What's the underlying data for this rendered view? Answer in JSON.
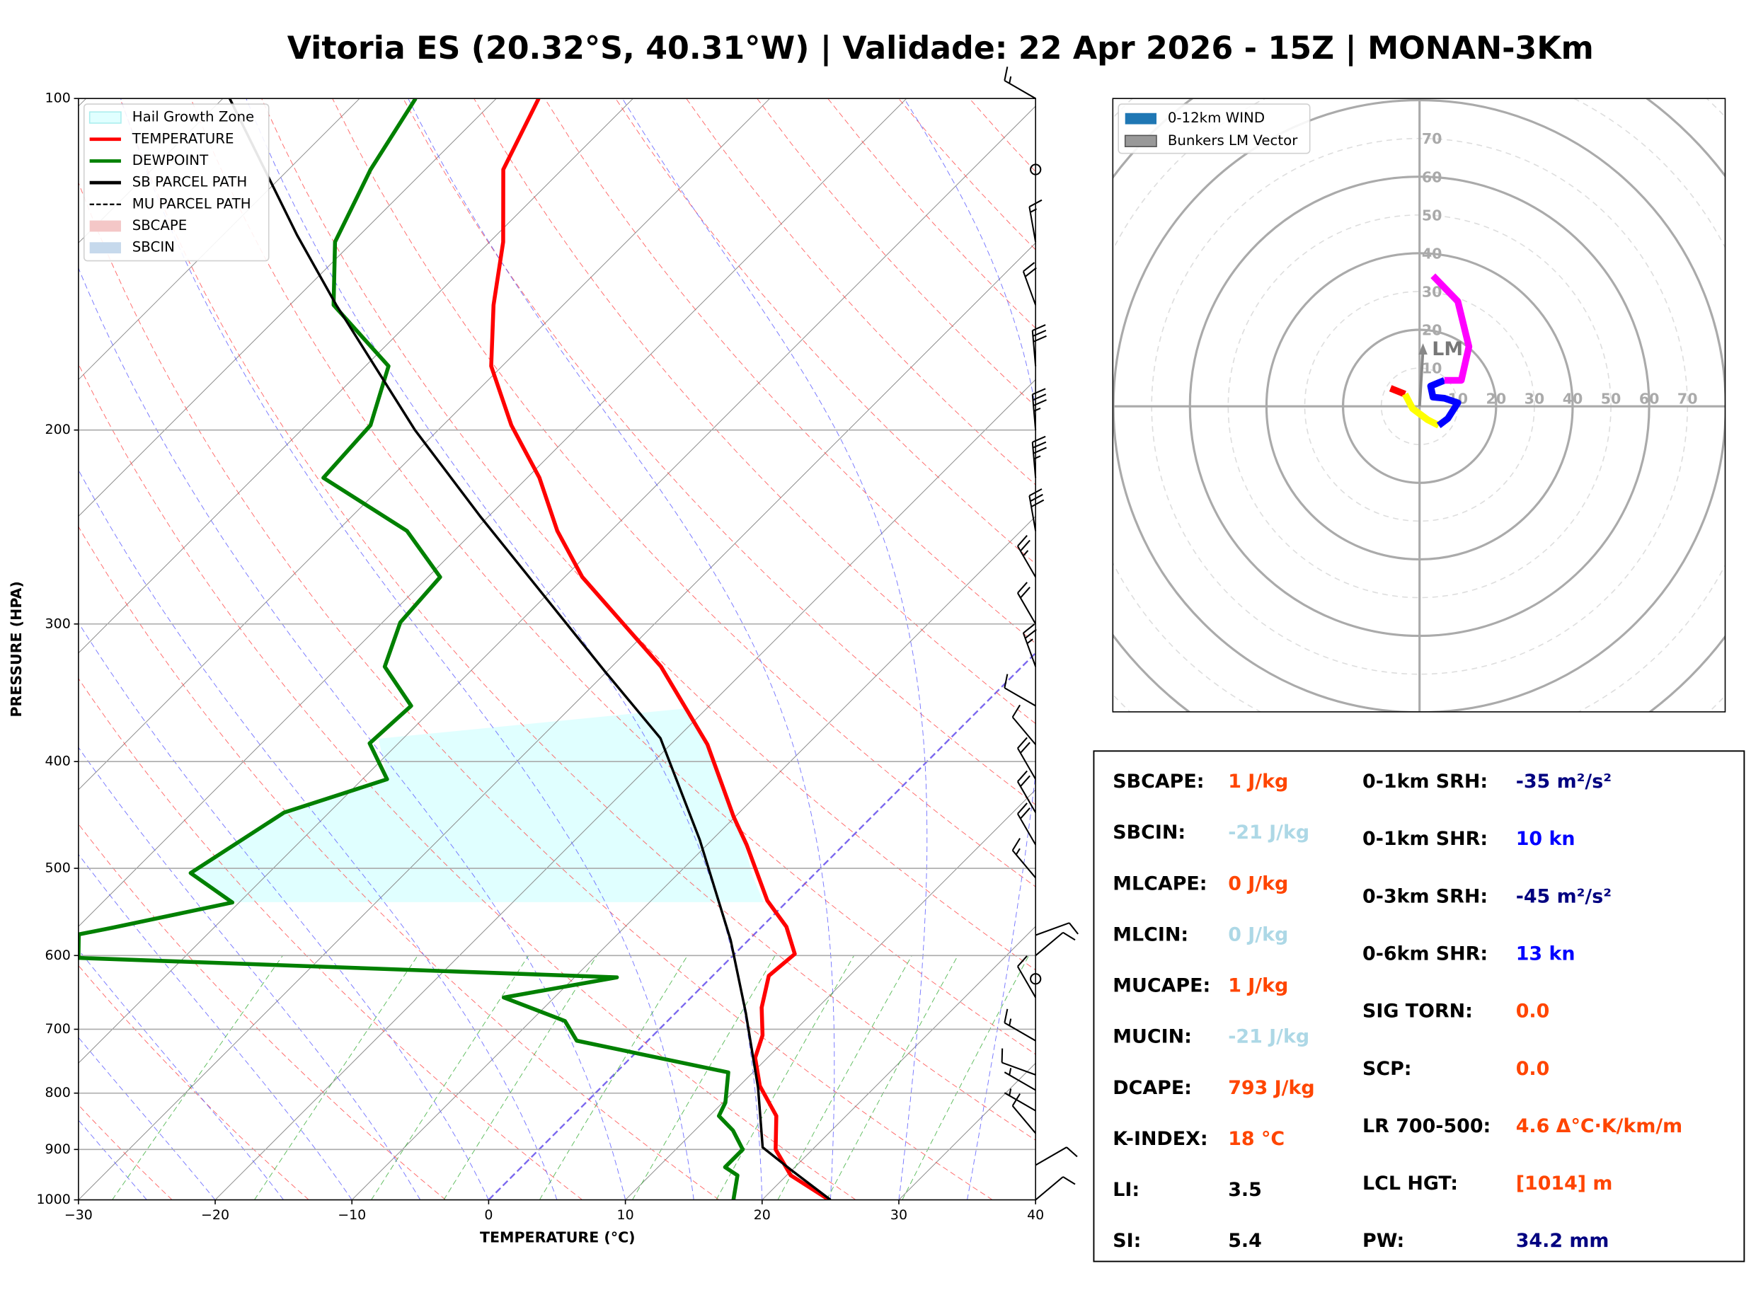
{
  "title": "Vitoria ES (20.32°S, 40.31°W) | Validade: 22 Apr 2026 - 15Z | MONAN-3Km",
  "chart_data": [
    {
      "type": "skewt",
      "x_label": "TEMPERATURE (°C)",
      "y_label": "PRESSURE (HPA)",
      "log_y": true,
      "grid": true,
      "legend_position": "upper left",
      "xlim": [
        -30,
        40
      ],
      "ylim": [
        1000,
        100
      ],
      "xticks": [
        {
          "value": -30,
          "label": "−30"
        },
        {
          "value": -20,
          "label": "−20"
        },
        {
          "value": -10,
          "label": "−10"
        },
        0,
        10,
        20,
        30,
        40
      ],
      "yticks": [
        100,
        200,
        300,
        400,
        500,
        600,
        700,
        800,
        900,
        1000
      ],
      "legend": [
        {
          "name": "Hail Growth Zone",
          "color": "#e0ffff",
          "style": "patch"
        },
        {
          "name": "TEMPERATURE",
          "color": "#ff0000",
          "style": "line"
        },
        {
          "name": "DEWPOINT",
          "color": "#008000",
          "style": "line"
        },
        {
          "name": "SB PARCEL PATH",
          "color": "#000000",
          "style": "line"
        },
        {
          "name": "MU PARCEL PATH",
          "color": "#000000",
          "style": "dashed"
        },
        {
          "name": "SBCAPE",
          "color": "#f4c7c7",
          "style": "patch"
        },
        {
          "name": "SBCIN",
          "color": "#c6d9ec",
          "style": "patch"
        }
      ],
      "series": [
        {
          "color": "#ff0000",
          "pressure": [
            1000,
            950,
            900,
            839,
            788,
            743,
            709,
            669,
            626,
            598,
            565,
            535,
            476,
            449,
            386,
            328,
            272,
            247,
            221,
            198,
            175,
            154,
            135,
            116,
            100
          ],
          "values": [
            24.9,
            20.3,
            17.3,
            14.9,
            11.5,
            9.1,
            8.0,
            5.9,
            4.1,
            4.4,
            1.8,
            -1.5,
            -7.1,
            -10.1,
            -17.3,
            -26.4,
            -38.7,
            -43.9,
            -49.1,
            -55.0,
            -60.8,
            -65.1,
            -69.0,
            -74.3,
            -76.9
          ]
        },
        {
          "color": "#008000",
          "pressure": [
            1000,
            950,
            934,
            900,
            865,
            839,
            816,
            766,
            717,
            688,
            655,
            628,
            603,
            574,
            566,
            537,
            505,
            445,
            415,
            385,
            356,
            328,
            299,
            272,
            247,
            221,
            198,
            175,
            154,
            135,
            116,
            100
          ],
          "values": [
            17.9,
            16.4,
            14.9,
            14.9,
            12.8,
            10.7,
            10.2,
            8.2,
            -5.2,
            -7.5,
            -13.7,
            -6.9,
            -47.7,
            -49.4,
            -47.4,
            -40.5,
            -45.7,
            -43.3,
            -38.2,
            -42.1,
            -41.8,
            -46.6,
            -48.7,
            -49.1,
            -54.9,
            -64.9,
            -65.3,
            -68.3,
            -76.8,
            -81.3,
            -84.0,
            -85.9
          ]
        },
        {
          "color": "#000000",
          "pressure": [
            1000,
            939,
            896,
            791,
            676,
            581,
            471,
            381,
            331,
            240,
            200,
            154,
            133,
            100
          ],
          "values": [
            25.0,
            19.9,
            16.2,
            11.5,
            5.1,
            -1.3,
            -10.9,
            -21.2,
            -30.2,
            -50.5,
            -61.7,
            -76.6,
            -84.6,
            -99.5
          ]
        }
      ],
      "wind": {
        "pressure": [
          100,
          116,
          135,
          154,
          175,
          200,
          221,
          247,
          272,
          300,
          328,
          356,
          386,
          415,
          445,
          476,
          510,
          575,
          600,
          630,
          655,
          717,
          770,
          795,
          830,
          870,
          930,
          1000
        ],
        "direction": [
          300,
          0,
          350,
          340,
          355,
          355,
          355,
          350,
          330,
          330,
          340,
          300,
          320,
          330,
          330,
          330,
          320,
          70,
          50,
          0,
          330,
          300,
          290,
          300,
          300,
          320,
          60,
          50
        ],
        "speed": [
          15,
          0,
          15,
          20,
          30,
          35,
          35,
          30,
          25,
          20,
          25,
          10,
          10,
          20,
          20,
          20,
          15,
          10,
          10,
          0,
          10,
          15,
          10,
          5,
          5,
          10,
          10,
          10
        ]
      }
    },
    {
      "type": "hodograph",
      "xlim": [
        -80,
        80
      ],
      "ylim": [
        -80,
        80
      ],
      "rings": [
        10,
        20,
        30,
        40,
        50,
        60,
        70
      ],
      "legend": [
        {
          "name": "0-12km WIND",
          "color": "#1f77b4"
        },
        {
          "name": "Bunkers LM Vector",
          "color": "#999999"
        }
      ],
      "segments": [
        {
          "color": "#ff0000",
          "u": [
            -7.6,
            -3.8
          ],
          "v": [
            4.7,
            3.2
          ]
        },
        {
          "color": "#ffff00",
          "u": [
            -3.8,
            -1.8,
            2.1,
            5.0
          ],
          "v": [
            3.2,
            -0.6,
            -3.5,
            -5.0
          ]
        },
        {
          "color": "#0000ff",
          "u": [
            5.0,
            7.4,
            10.0,
            6.5,
            3.5,
            2.9,
            6.5
          ],
          "v": [
            -5.0,
            -3.2,
            0.9,
            2.1,
            2.4,
            5.3,
            6.8
          ]
        },
        {
          "color": "#ff00ff",
          "u": [
            6.5,
            10.9,
            12.9,
            10.0,
            3.5
          ],
          "v": [
            6.8,
            6.8,
            15.6,
            27.4,
            34.1
          ]
        }
      ],
      "lm_vector": {
        "label": "LM",
        "u": 0.9,
        "v": 14.7
      }
    }
  ],
  "indices": {
    "left": [
      {
        "label": "SBCAPE:",
        "value": "1 J/kg",
        "color": "#ff4500"
      },
      {
        "label": "SBCIN:",
        "value": "-21 J/kg",
        "color": "#add8e6"
      },
      {
        "label": "MLCAPE:",
        "value": "0 J/kg",
        "color": "#ff4500"
      },
      {
        "label": "MLCIN:",
        "value": "0 J/kg",
        "color": "#add8e6"
      },
      {
        "label": "MUCAPE:",
        "value": "1 J/kg",
        "color": "#ff4500"
      },
      {
        "label": "MUCIN:",
        "value": "-21 J/kg",
        "color": "#add8e6"
      },
      {
        "label": "DCAPE:",
        "value": "793 J/kg",
        "color": "#ff4500"
      },
      {
        "label": "K-INDEX:",
        "value": "18 °C",
        "color": "#ff4500"
      },
      {
        "label": "LI:",
        "value": "3.5",
        "color": "#000000"
      },
      {
        "label": "SI:",
        "value": "5.4",
        "color": "#000000"
      }
    ],
    "right": [
      {
        "label": "0-1km SRH:",
        "value": "-35 m²/s²",
        "color": "#000080"
      },
      {
        "label": "0-1km SHR:",
        "value": "10 kn",
        "color": "#0000ff"
      },
      {
        "label": "0-3km SRH:",
        "value": "-45 m²/s²",
        "color": "#000080"
      },
      {
        "label": "0-6km SHR:",
        "value": "13 kn",
        "color": "#0000ff"
      },
      {
        "label": "SIG TORN:",
        "value": "0.0",
        "color": "#ff4500"
      },
      {
        "label": "SCP:",
        "value": "0.0",
        "color": "#ff4500"
      },
      {
        "label": "LR 700-500:",
        "value": "4.6 Δ°C·K/km/m",
        "color": "#ff4500"
      },
      {
        "label": "LCL HGT:",
        "value": "[1014] m",
        "color": "#ff4500"
      },
      {
        "label": "PW:",
        "value": "34.2 mm",
        "color": "#000080"
      }
    ]
  }
}
